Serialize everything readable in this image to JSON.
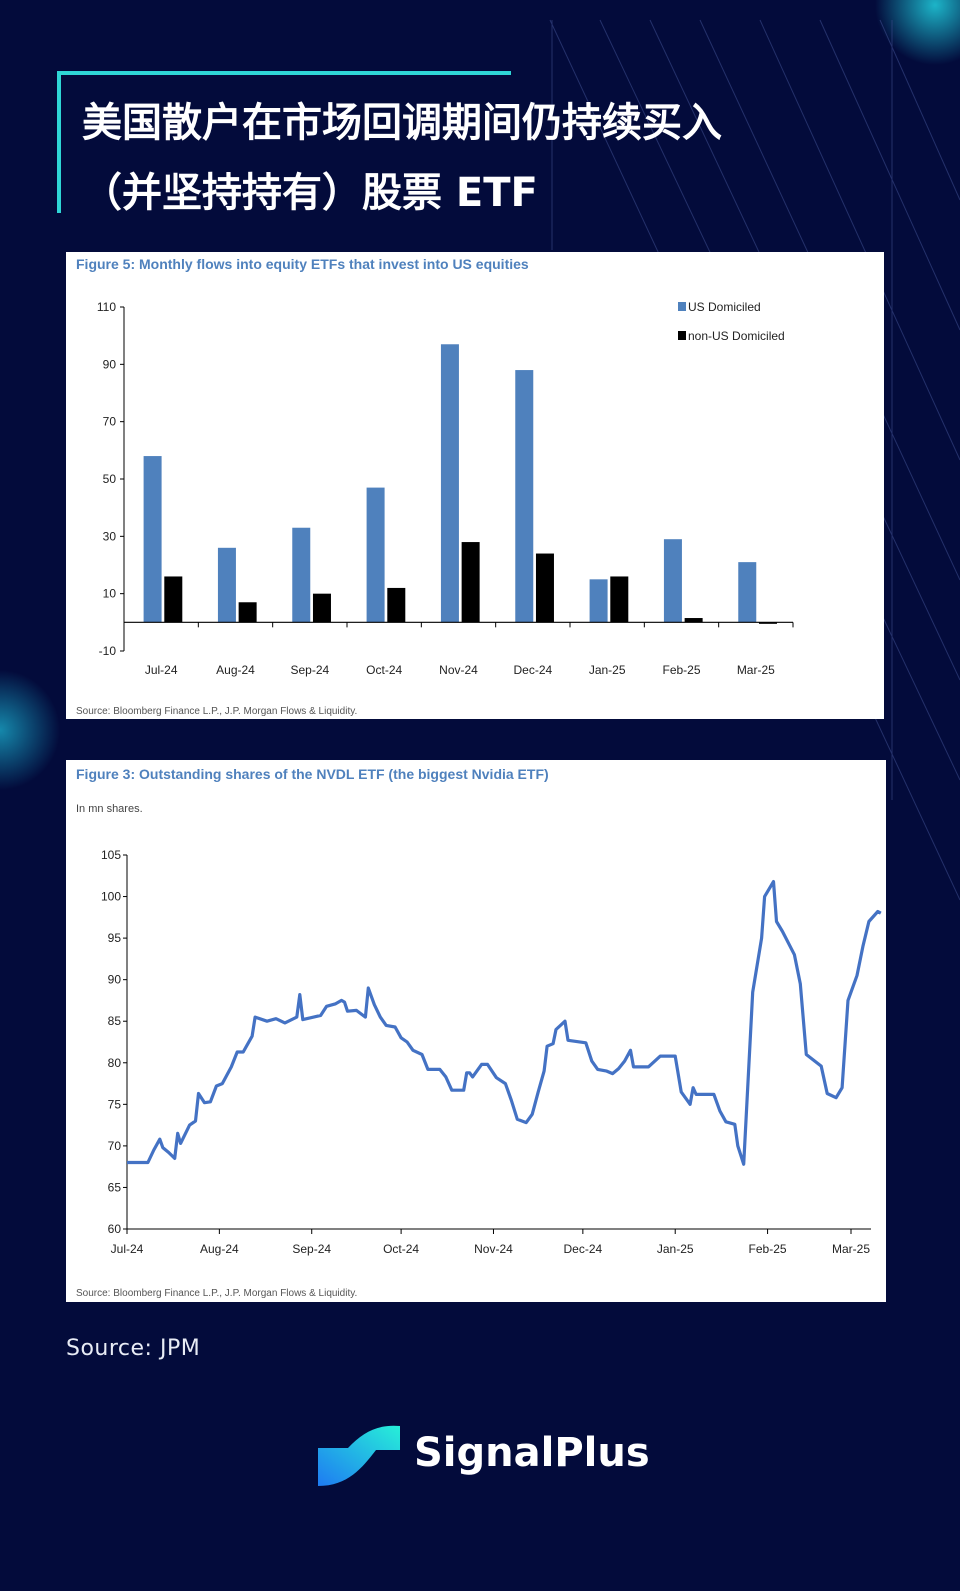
{
  "header": {
    "title_line1": "美国散户在市场回调期间仍持续买入",
    "title_line2": "（并坚持持有）股票 ETF"
  },
  "colors": {
    "background": "#030b3b",
    "accent": "#2fd6d6",
    "series_blue": "#4f81bd",
    "series_black": "#000000",
    "line": "#4472c4"
  },
  "chart_data": [
    {
      "type": "bar",
      "title": "Figure 5: Monthly flows into equity ETFs that invest into US equities",
      "source": "Source: Bloomberg Finance L.P., J.P. Morgan Flows & Liquidity.",
      "categories": [
        "Jul-24",
        "Aug-24",
        "Sep-24",
        "Oct-24",
        "Nov-24",
        "Dec-24",
        "Jan-25",
        "Feb-25",
        "Mar-25"
      ],
      "series": [
        {
          "name": "US Domiciled",
          "color": "#4f81bd",
          "values": [
            58,
            26,
            33,
            47,
            97,
            88,
            15,
            29,
            21
          ]
        },
        {
          "name": "non-US Domiciled",
          "color": "#000000",
          "values": [
            16,
            7,
            10,
            12,
            28,
            24,
            16,
            1.5,
            -0.5
          ]
        }
      ],
      "ylim": [
        -10,
        110
      ],
      "yticks": [
        110,
        90,
        70,
        50,
        30,
        10,
        -10
      ],
      "grid": false,
      "legend": "top-right"
    },
    {
      "type": "line",
      "title": "Figure 3: Outstanding shares of the NVDL ETF (the biggest Nvidia ETF)",
      "subtitle": "In mn shares.",
      "source": "Source: Bloomberg Finance L.P., J.P. Morgan Flows & Liquidity.",
      "ylim": [
        60,
        105
      ],
      "yticks": [
        105,
        100,
        95,
        90,
        85,
        80,
        75,
        70,
        65,
        60
      ],
      "xticks": [
        {
          "label": "Jul-24",
          "date": "2024-07-01"
        },
        {
          "label": "Aug-24",
          "date": "2024-08-01"
        },
        {
          "label": "Sep-24",
          "date": "2024-09-01"
        },
        {
          "label": "Oct-24",
          "date": "2024-10-01"
        },
        {
          "label": "Nov-24",
          "date": "2024-11-01"
        },
        {
          "label": "Dec-24",
          "date": "2024-12-01"
        },
        {
          "label": "Jan-25",
          "date": "2025-01-01"
        },
        {
          "label": "Feb-25",
          "date": "2025-02-01"
        },
        {
          "label": "Mar-25",
          "date": "2025-03-01"
        }
      ],
      "xlim": [
        "2024-07-01",
        "2025-03-12"
      ],
      "grid": false,
      "points": [
        [
          "2024-07-01",
          68
        ],
        [
          "2024-07-08",
          68
        ],
        [
          "2024-07-10",
          69.5
        ],
        [
          "2024-07-12",
          70.8
        ],
        [
          "2024-07-13",
          69.8
        ],
        [
          "2024-07-15",
          69.2
        ],
        [
          "2024-07-17",
          68.5
        ],
        [
          "2024-07-18",
          71.5
        ],
        [
          "2024-07-19",
          70.3
        ],
        [
          "2024-07-22",
          72.5
        ],
        [
          "2024-07-24",
          73
        ],
        [
          "2024-07-25",
          76.3
        ],
        [
          "2024-07-27",
          75.2
        ],
        [
          "2024-07-29",
          75.3
        ],
        [
          "2024-07-31",
          77.2
        ],
        [
          "2024-08-02",
          77.5
        ],
        [
          "2024-08-05",
          79.5
        ],
        [
          "2024-08-07",
          81.3
        ],
        [
          "2024-08-09",
          81.3
        ],
        [
          "2024-08-12",
          83.2
        ],
        [
          "2024-08-13",
          85.5
        ],
        [
          "2024-08-17",
          85
        ],
        [
          "2024-08-20",
          85.3
        ],
        [
          "2024-08-23",
          84.8
        ],
        [
          "2024-08-27",
          85.5
        ],
        [
          "2024-08-28",
          88.2
        ],
        [
          "2024-08-29",
          85.2
        ],
        [
          "2024-09-04",
          85.7
        ],
        [
          "2024-09-06",
          86.8
        ],
        [
          "2024-09-09",
          87.1
        ],
        [
          "2024-09-11",
          87.5
        ],
        [
          "2024-09-12",
          87.3
        ],
        [
          "2024-09-13",
          86.2
        ],
        [
          "2024-09-16",
          86.3
        ],
        [
          "2024-09-19",
          85.5
        ],
        [
          "2024-09-20",
          89
        ],
        [
          "2024-09-22",
          87
        ],
        [
          "2024-09-24",
          85.5
        ],
        [
          "2024-09-26",
          84.5
        ],
        [
          "2024-09-29",
          84.3
        ],
        [
          "2024-10-01",
          83
        ],
        [
          "2024-10-03",
          82.5
        ],
        [
          "2024-10-05",
          81.5
        ],
        [
          "2024-10-08",
          81
        ],
        [
          "2024-10-10",
          79.2
        ],
        [
          "2024-10-14",
          79.2
        ],
        [
          "2024-10-16",
          78.3
        ],
        [
          "2024-10-18",
          76.7
        ],
        [
          "2024-10-22",
          76.7
        ],
        [
          "2024-10-23",
          78.8
        ],
        [
          "2024-10-24",
          78.8
        ],
        [
          "2024-10-25",
          78.3
        ],
        [
          "2024-10-28",
          79.8
        ],
        [
          "2024-10-30",
          79.8
        ],
        [
          "2024-11-02",
          78.2
        ],
        [
          "2024-11-05",
          77.5
        ],
        [
          "2024-11-07",
          75.5
        ],
        [
          "2024-11-09",
          73.2
        ],
        [
          "2024-11-12",
          72.8
        ],
        [
          "2024-11-14",
          73.8
        ],
        [
          "2024-11-16",
          76.5
        ],
        [
          "2024-11-18",
          79
        ],
        [
          "2024-11-19",
          82
        ],
        [
          "2024-11-21",
          82.3
        ],
        [
          "2024-11-22",
          84
        ],
        [
          "2024-11-25",
          85
        ],
        [
          "2024-11-26",
          82.7
        ],
        [
          "2024-12-02",
          82.4
        ],
        [
          "2024-12-04",
          80.2
        ],
        [
          "2024-12-06",
          79.2
        ],
        [
          "2024-12-09",
          79
        ],
        [
          "2024-12-11",
          78.7
        ],
        [
          "2024-12-13",
          79.3
        ],
        [
          "2024-12-15",
          80.2
        ],
        [
          "2024-12-17",
          81.5
        ],
        [
          "2024-12-18",
          79.5
        ],
        [
          "2024-12-23",
          79.5
        ],
        [
          "2024-12-27",
          80.8
        ],
        [
          "2025-01-01",
          80.8
        ],
        [
          "2025-01-03",
          76.5
        ],
        [
          "2025-01-06",
          75
        ],
        [
          "2025-01-07",
          77
        ],
        [
          "2025-01-08",
          76.2
        ],
        [
          "2025-01-14",
          76.2
        ],
        [
          "2025-01-16",
          74.2
        ],
        [
          "2025-01-18",
          72.9
        ],
        [
          "2025-01-21",
          72.6
        ],
        [
          "2025-01-22",
          70
        ],
        [
          "2025-01-24",
          67.8
        ],
        [
          "2025-01-27",
          88.5
        ],
        [
          "2025-01-30",
          95
        ],
        [
          "2025-01-31",
          100
        ],
        [
          "2025-02-03",
          101.8
        ],
        [
          "2025-02-04",
          97
        ],
        [
          "2025-02-06",
          95.8
        ],
        [
          "2025-02-10",
          93
        ],
        [
          "2025-02-12",
          89.5
        ],
        [
          "2025-02-14",
          81
        ],
        [
          "2025-02-19",
          79.6
        ],
        [
          "2025-02-21",
          76.3
        ],
        [
          "2025-02-24",
          75.8
        ],
        [
          "2025-02-26",
          77
        ],
        [
          "2025-02-28",
          87.5
        ],
        [
          "2025-03-03",
          90.5
        ],
        [
          "2025-03-05",
          94
        ],
        [
          "2025-03-07",
          97
        ],
        [
          "2025-03-10",
          98.2
        ],
        [
          "2025-03-11",
          98
        ]
      ]
    }
  ],
  "footer": {
    "source": "Source: JPM",
    "brand": "SignalPlus"
  }
}
